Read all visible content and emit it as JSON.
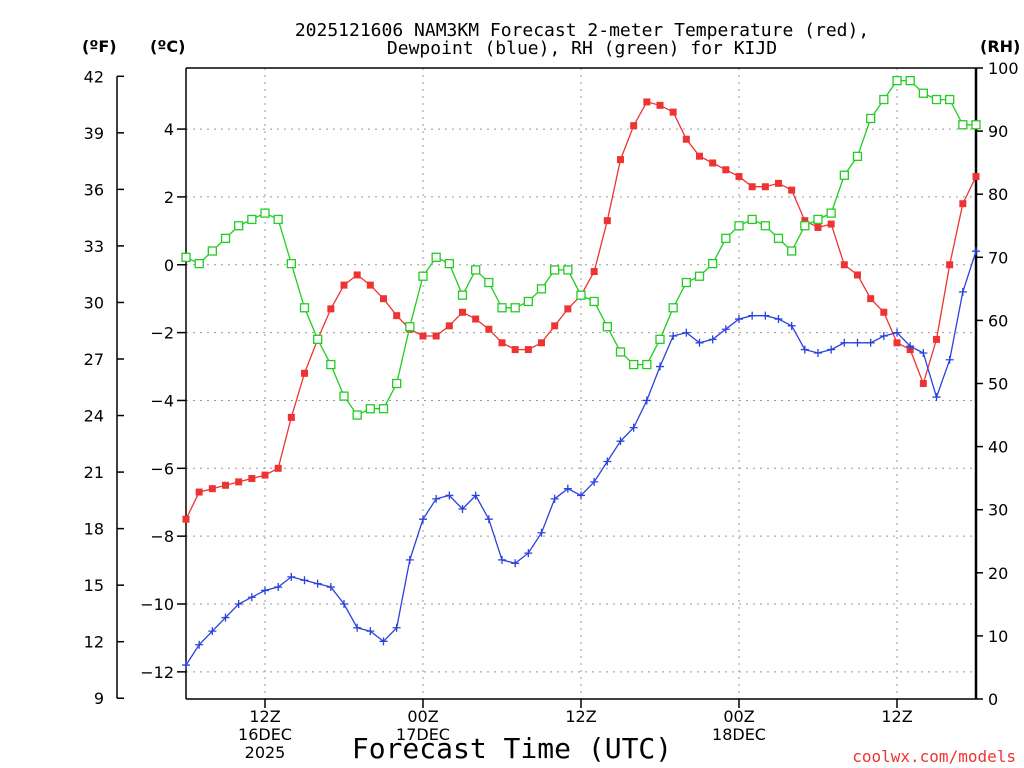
{
  "chart_data": {
    "type": "line",
    "title_line1": "2025121606 NAM3KM Forecast 2-meter Temperature (red),",
    "title_line2": "Dewpoint (blue), RH (green) for KIJD",
    "left_outer_unit": "(ºF)",
    "left_inner_unit": "(ºC)",
    "right_unit": "(RH)",
    "xlabel": "Forecast Time (UTC)",
    "credit": "coolwx.com/models",
    "x_range_hours": [
      0,
      60
    ],
    "celsius_range": [
      -12.8,
      5.8
    ],
    "rh_range": [
      0,
      100
    ],
    "fahrenheit_ticks": [
      "42",
      "39",
      "36",
      "33",
      "30",
      "27",
      "24",
      "21",
      "18",
      "15",
      "12",
      "9"
    ],
    "celsius_ticks": [
      "4",
      "2",
      "0",
      "−2",
      "−4",
      "−6",
      "−8",
      "−10",
      "−12"
    ],
    "rh_ticks": [
      "100",
      "90",
      "80",
      "70",
      "60",
      "50",
      "40",
      "30",
      "20",
      "10",
      "0"
    ],
    "x_ticks": [
      {
        "hour": 6,
        "lines": [
          "12Z",
          "16DEC",
          "2025"
        ]
      },
      {
        "hour": 18,
        "lines": [
          "00Z",
          "17DEC"
        ]
      },
      {
        "hour": 30,
        "lines": [
          "12Z"
        ]
      },
      {
        "hour": 42,
        "lines": [
          "00Z",
          "18DEC"
        ]
      },
      {
        "hour": 54,
        "lines": [
          "12Z"
        ]
      }
    ],
    "series": [
      {
        "color": "#ee3333",
        "marker": "filled-square",
        "axis": "celsius",
        "x": [
          0,
          1,
          2,
          3,
          4,
          5,
          6,
          7,
          8,
          9,
          10,
          11,
          12,
          13,
          14,
          15,
          16,
          17,
          18,
          19,
          20,
          21,
          22,
          23,
          24,
          25,
          26,
          27,
          28,
          29,
          30,
          31,
          32,
          33,
          34,
          35,
          36,
          37,
          38,
          39,
          40,
          41,
          42,
          43,
          44,
          45,
          46,
          47,
          48,
          49,
          50,
          51,
          52,
          53,
          54,
          55,
          56,
          57,
          58,
          59,
          60
        ],
        "values": [
          -7.5,
          -6.7,
          -6.6,
          -6.5,
          -6.4,
          -6.3,
          -6.2,
          -6.0,
          -4.5,
          -3.2,
          -2.2,
          -1.3,
          -0.6,
          -0.3,
          -0.6,
          -1.0,
          -1.5,
          -1.9,
          -2.1,
          -2.1,
          -1.8,
          -1.4,
          -1.6,
          -1.9,
          -2.3,
          -2.5,
          -2.5,
          -2.3,
          -1.8,
          -1.3,
          -0.9,
          -0.2,
          1.3,
          3.1,
          4.1,
          4.8,
          4.7,
          4.5,
          3.7,
          3.2,
          3.0,
          2.8,
          2.6,
          2.3,
          2.3,
          2.4,
          2.2,
          1.3,
          1.1,
          1.2,
          0.0,
          -0.3,
          -1.0,
          -1.4,
          -2.3,
          -2.5,
          -3.5,
          -2.2,
          0.0,
          1.8,
          2.6
        ]
      },
      {
        "color": "#2a43dd",
        "marker": "plus",
        "axis": "celsius",
        "x": [
          0,
          1,
          2,
          3,
          4,
          5,
          6,
          7,
          8,
          9,
          10,
          11,
          12,
          13,
          14,
          15,
          16,
          17,
          18,
          19,
          20,
          21,
          22,
          23,
          24,
          25,
          26,
          27,
          28,
          29,
          30,
          31,
          32,
          33,
          34,
          35,
          36,
          37,
          38,
          39,
          40,
          41,
          42,
          43,
          44,
          45,
          46,
          47,
          48,
          49,
          50,
          51,
          52,
          53,
          54,
          55,
          56,
          57,
          58,
          59,
          60
        ],
        "values": [
          -11.8,
          -11.2,
          -10.8,
          -10.4,
          -10.0,
          -9.8,
          -9.6,
          -9.5,
          -9.2,
          -9.3,
          -9.4,
          -9.5,
          -10.0,
          -10.7,
          -10.8,
          -11.1,
          -10.7,
          -8.7,
          -7.5,
          -6.9,
          -6.8,
          -7.2,
          -6.8,
          -7.5,
          -8.7,
          -8.8,
          -8.5,
          -7.9,
          -6.9,
          -6.6,
          -6.8,
          -6.4,
          -5.8,
          -5.2,
          -4.8,
          -4.0,
          -3.0,
          -2.1,
          -2.0,
          -2.3,
          -2.2,
          -1.9,
          -1.6,
          -1.5,
          -1.5,
          -1.6,
          -1.8,
          -2.5,
          -2.6,
          -2.5,
          -2.3,
          -2.3,
          -2.3,
          -2.1,
          -2.0,
          -2.4,
          -2.6,
          -3.9,
          -2.8,
          -0.8,
          0.4
        ]
      },
      {
        "color": "#22cc22",
        "marker": "open-square",
        "axis": "rh",
        "x": [
          0,
          1,
          2,
          3,
          4,
          5,
          6,
          7,
          8,
          9,
          10,
          11,
          12,
          13,
          14,
          15,
          16,
          17,
          18,
          19,
          20,
          21,
          22,
          23,
          24,
          25,
          26,
          27,
          28,
          29,
          30,
          31,
          32,
          33,
          34,
          35,
          36,
          37,
          38,
          39,
          40,
          41,
          42,
          43,
          44,
          45,
          46,
          47,
          48,
          49,
          50,
          51,
          52,
          53,
          54,
          55,
          56,
          57,
          58,
          59,
          60
        ],
        "values": [
          70,
          69,
          71,
          73,
          75,
          76,
          77,
          76,
          69,
          62,
          57,
          53,
          48,
          45,
          46,
          46,
          50,
          59,
          67,
          70,
          69,
          64,
          68,
          66,
          62,
          62,
          63,
          65,
          68,
          68,
          64,
          63,
          59,
          55,
          53,
          53,
          57,
          62,
          66,
          67,
          69,
          73,
          75,
          76,
          75,
          73,
          71,
          75,
          76,
          77,
          83,
          86,
          92,
          95,
          98,
          98,
          96,
          95,
          95,
          91,
          91
        ]
      }
    ]
  }
}
